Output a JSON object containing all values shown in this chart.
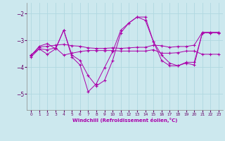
{
  "background_color": "#cce8ee",
  "grid_color": "#b0d8e0",
  "line_color": "#aa00aa",
  "xlabel": "Windchill (Refroidissement éolien,°C)",
  "x_ticks": [
    0,
    1,
    2,
    3,
    4,
    5,
    6,
    7,
    8,
    9,
    10,
    11,
    12,
    13,
    14,
    15,
    16,
    17,
    18,
    19,
    20,
    21,
    22,
    23
  ],
  "ylim": [
    -5.6,
    -1.6
  ],
  "xlim": [
    -0.5,
    23.5
  ],
  "yticks": [
    -5,
    -4,
    -3,
    -2
  ],
  "s1": [
    -3.55,
    -3.32,
    -3.35,
    -3.28,
    -3.55,
    -3.48,
    -3.42,
    -3.38,
    -3.38,
    -3.38,
    -3.38,
    -3.4,
    -3.4,
    -3.4,
    -3.4,
    -3.35,
    -3.48,
    -3.48,
    -3.46,
    -3.4,
    -3.4,
    -3.52,
    -3.52,
    -3.52
  ],
  "s2": [
    -3.55,
    -3.25,
    -3.22,
    -3.18,
    -3.15,
    -3.2,
    -3.22,
    -3.28,
    -3.3,
    -3.3,
    -3.28,
    -3.3,
    -3.28,
    -3.26,
    -3.26,
    -3.18,
    -3.2,
    -3.26,
    -3.23,
    -3.23,
    -3.18,
    -2.7,
    -2.7,
    -2.7
  ],
  "s3": [
    -3.58,
    -3.22,
    -3.12,
    -3.32,
    -2.62,
    -3.55,
    -3.75,
    -4.32,
    -4.7,
    -4.5,
    -3.75,
    -2.72,
    -2.35,
    -2.13,
    -2.25,
    -3.05,
    -3.55,
    -3.85,
    -3.95,
    -3.82,
    -3.82,
    -2.72,
    -2.72,
    -2.72
  ],
  "s4": [
    -3.62,
    -3.32,
    -3.52,
    -3.32,
    -2.62,
    -3.62,
    -3.92,
    -4.92,
    -4.62,
    -4.02,
    -3.42,
    -2.62,
    -2.35,
    -2.13,
    -2.13,
    -3.05,
    -3.75,
    -3.95,
    -3.95,
    -3.85,
    -3.92,
    -2.72,
    -2.72,
    -2.72
  ]
}
